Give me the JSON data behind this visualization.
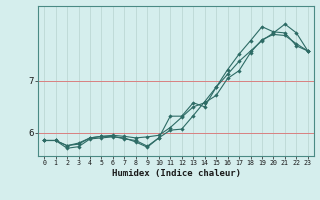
{
  "xlabel": "Humidex (Indice chaleur)",
  "background_color": "#d5eeed",
  "line_color": "#2d6b65",
  "grid_color_v": "#bcd8d5",
  "grid_color_h": "#d98080",
  "xmin": -0.5,
  "xmax": 23.5,
  "ymin": 5.55,
  "ymax": 8.45,
  "yticks": [
    6,
    7
  ],
  "xticks": [
    0,
    1,
    2,
    3,
    4,
    5,
    6,
    7,
    8,
    9,
    10,
    11,
    12,
    13,
    14,
    15,
    16,
    17,
    18,
    19,
    20,
    21,
    22,
    23
  ],
  "line1_x": [
    0,
    1,
    2,
    3,
    4,
    5,
    6,
    7,
    8,
    9,
    10,
    11,
    12,
    13,
    14,
    15,
    16,
    17,
    18,
    19,
    20,
    21,
    22,
    23
  ],
  "line1_y": [
    5.85,
    5.85,
    5.75,
    5.8,
    5.9,
    5.93,
    5.95,
    5.93,
    5.9,
    5.92,
    5.95,
    6.1,
    6.3,
    6.5,
    6.58,
    6.72,
    7.05,
    7.2,
    7.55,
    7.8,
    7.9,
    7.88,
    7.72,
    7.58
  ],
  "line2_x": [
    0,
    1,
    2,
    3,
    4,
    5,
    6,
    7,
    8,
    9,
    10,
    11,
    12,
    13,
    14,
    15,
    16,
    17,
    18,
    19,
    20,
    21,
    22,
    23
  ],
  "line2_y": [
    5.85,
    5.85,
    5.7,
    5.73,
    5.88,
    5.9,
    5.92,
    5.9,
    5.82,
    5.72,
    5.9,
    6.32,
    6.32,
    6.58,
    6.5,
    6.88,
    7.22,
    7.52,
    7.78,
    8.05,
    7.95,
    7.93,
    7.68,
    7.58
  ],
  "line3_x": [
    0,
    1,
    2,
    3,
    4,
    5,
    6,
    7,
    8,
    9,
    10,
    11,
    12,
    13,
    14,
    15,
    16,
    17,
    18,
    19,
    20,
    21,
    22,
    23
  ],
  "line3_y": [
    5.85,
    5.85,
    5.75,
    5.78,
    5.9,
    5.93,
    5.93,
    5.88,
    5.85,
    5.74,
    5.9,
    6.05,
    6.07,
    6.33,
    6.6,
    6.88,
    7.13,
    7.38,
    7.58,
    7.78,
    7.93,
    8.1,
    7.93,
    7.58
  ]
}
